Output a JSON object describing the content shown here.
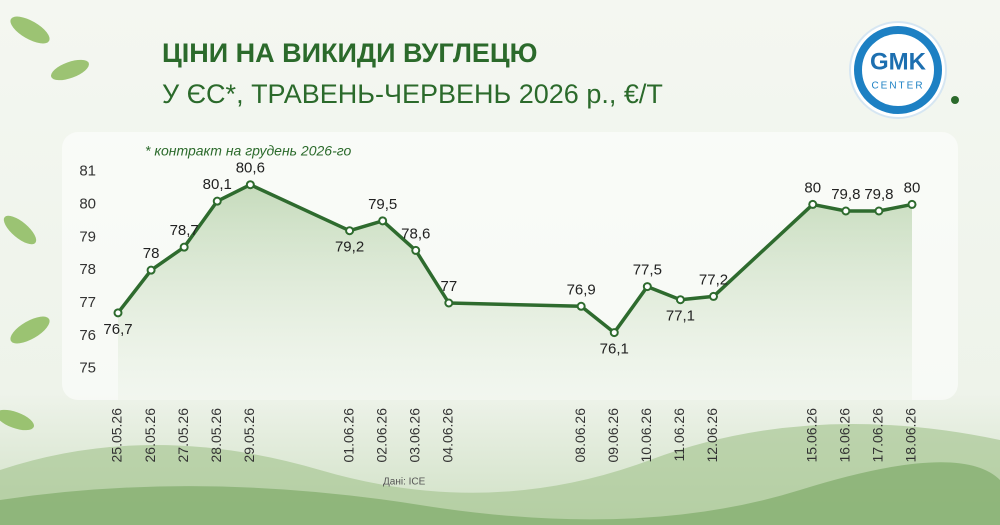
{
  "chart_data": {
    "type": "line",
    "title": "ЦІНИ НА ВИКИДИ ВУГЛЕЦЮ",
    "subtitle": "У ЄС*, ТРАВЕНЬ-ЧЕРВЕНЬ 2026 р., €/Т",
    "note": "* контракт на грудень 2026-го",
    "source": "Дані: ICE",
    "logo": {
      "main": "GMK",
      "sub": "CENTER"
    },
    "x": [
      "25.05.26",
      "26.05.26",
      "27.05.26",
      "28.05.26",
      "29.05.26",
      "01.06.26",
      "02.06.26",
      "03.06.26",
      "04.06.26",
      "08.06.26",
      "09.06.26",
      "10.06.26",
      "11.06.26",
      "12.06.26",
      "15.06.26",
      "16.06.26",
      "17.06.26",
      "18.06.26"
    ],
    "series": [
      {
        "color": "#2e6b2e",
        "values": [
          76.7,
          78,
          78.7,
          80.1,
          80.6,
          79.2,
          79.5,
          78.6,
          77,
          76.9,
          76.1,
          77.5,
          77.1,
          77.2,
          80,
          79.8,
          79.8,
          80
        ],
        "value_labels": [
          "76,7",
          "78",
          "78,7",
          "80,1",
          "80,6",
          "79,2",
          "79,5",
          "78,6",
          "77",
          "76,9",
          "76,1",
          "77,5",
          "77,1",
          "77,2",
          "80",
          "79,8",
          "79,8",
          "80"
        ]
      }
    ],
    "ylim": [
      74.2,
      81.2
    ],
    "yticks": [
      75,
      76,
      77,
      78,
      79,
      80,
      81
    ],
    "grid": false
  }
}
